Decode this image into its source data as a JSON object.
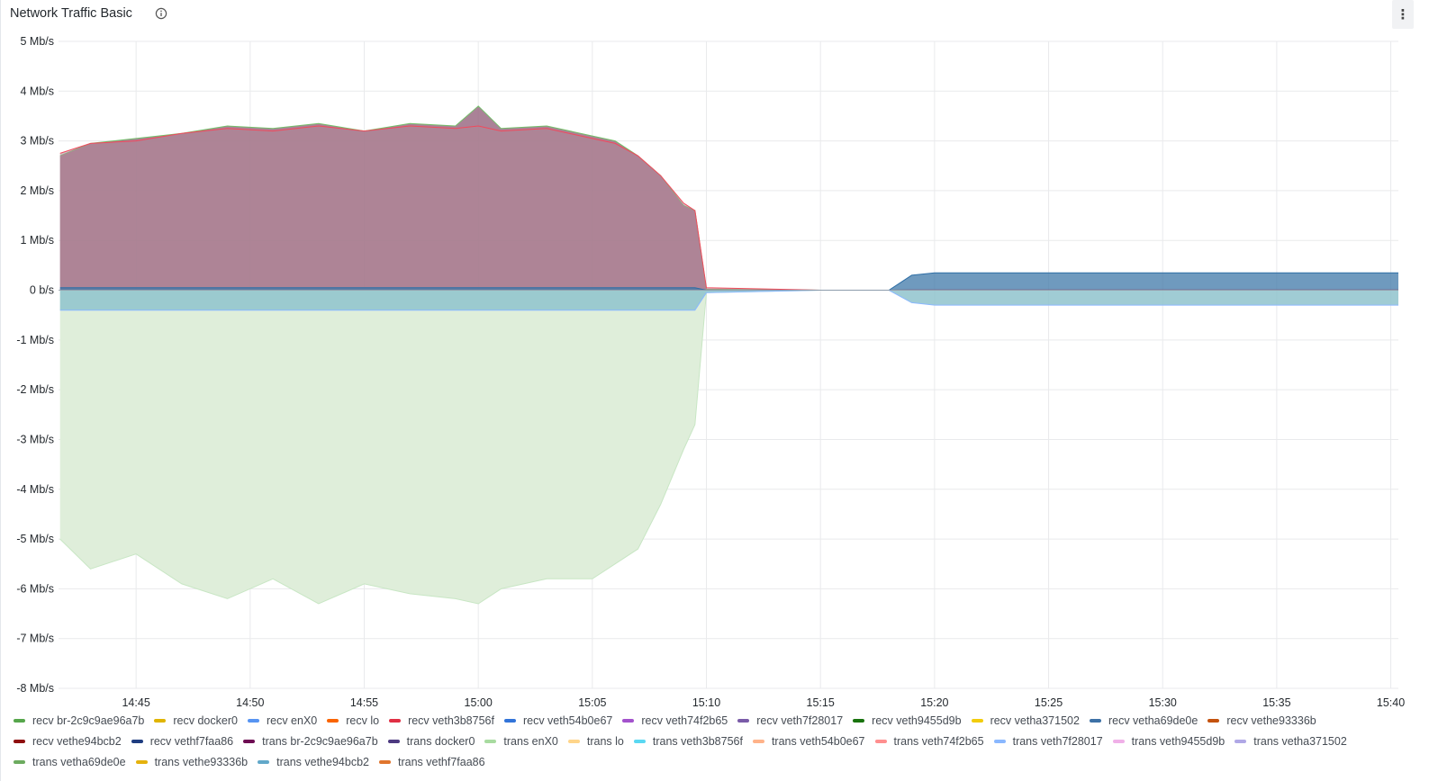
{
  "panel": {
    "title": "Network Traffic Basic",
    "menu_label": "⋮"
  },
  "chart_data": {
    "type": "area",
    "title": "Network Traffic Basic",
    "y_ticks": [
      "5 Mb/s",
      "4 Mb/s",
      "3 Mb/s",
      "2 Mb/s",
      "1 Mb/s",
      "0 b/s",
      "-1 Mb/s",
      "-2 Mb/s",
      "-3 Mb/s",
      "-4 Mb/s",
      "-5 Mb/s",
      "-6 Mb/s",
      "-7 Mb/s",
      "-8 Mb/s"
    ],
    "x_ticks": [
      "14:45",
      "14:50",
      "14:55",
      "15:00",
      "15:05",
      "15:10",
      "15:15",
      "15:20",
      "15:25",
      "15:30",
      "15:35",
      "15:40"
    ],
    "ylim": [
      -8,
      5
    ],
    "y_unit": "Mb/s",
    "x_range": [
      "14:41:36",
      "15:40:20"
    ],
    "grid": true,
    "legend_position": "bottom",
    "series_samples_time": [
      "14:41:40",
      "14:43",
      "14:45",
      "14:47",
      "14:49",
      "14:51",
      "14:53",
      "14:55",
      "14:57",
      "14:59",
      "15:00",
      "15:01",
      "15:03",
      "15:05",
      "15:06",
      "15:07",
      "15:08",
      "15:09",
      "15:09:30",
      "15:10",
      "15:15",
      "15:18",
      "15:19",
      "15:20",
      "15:25",
      "15:30",
      "15:35",
      "15:40:20"
    ],
    "series": [
      {
        "name": "recv br-2c9c9ae96a7b",
        "color": "#73bf69",
        "values": [
          2.7,
          2.95,
          3.05,
          3.15,
          3.3,
          3.25,
          3.35,
          3.2,
          3.35,
          3.3,
          3.7,
          3.25,
          3.3,
          3.1,
          3.0,
          2.7,
          2.3,
          1.7,
          1.6,
          0.02,
          0,
          0,
          0.01,
          0.01,
          0.01,
          0.01,
          0.01,
          0.01
        ]
      },
      {
        "name": "recv veth3b8756f",
        "color": "#f2495c",
        "values": [
          2.75,
          2.95,
          3.0,
          3.15,
          3.25,
          3.2,
          3.3,
          3.2,
          3.3,
          3.25,
          3.3,
          3.2,
          3.25,
          3.05,
          2.95,
          2.7,
          2.3,
          1.75,
          1.6,
          0.05,
          0,
          0,
          0.01,
          0.01,
          0.01,
          0.01,
          0.01,
          0.01
        ]
      },
      {
        "name": "recv vethe94bcb2",
        "color": "#2f6fa6",
        "values": [
          0.05,
          0.05,
          0.05,
          0.05,
          0.05,
          0.05,
          0.05,
          0.05,
          0.05,
          0.05,
          0.05,
          0.05,
          0.05,
          0.05,
          0.05,
          0.05,
          0.05,
          0.05,
          0.05,
          0,
          0,
          0,
          0.3,
          0.35,
          0.35,
          0.35,
          0.35,
          0.35
        ]
      },
      {
        "name": "trans enX0",
        "color": "#c8e6c4",
        "values": [
          -5.0,
          -5.6,
          -5.3,
          -5.9,
          -6.2,
          -5.8,
          -6.3,
          -5.9,
          -6.1,
          -6.2,
          -6.3,
          -6.0,
          -5.8,
          -5.8,
          -5.5,
          -5.2,
          -4.3,
          -3.2,
          -2.7,
          -0.05,
          0,
          0,
          0,
          0,
          0,
          0,
          0,
          0
        ]
      },
      {
        "name": "trans veth3b8756f",
        "color": "#8ab8ff",
        "values": [
          -0.4,
          -0.4,
          -0.4,
          -0.4,
          -0.4,
          -0.4,
          -0.4,
          -0.4,
          -0.4,
          -0.4,
          -0.4,
          -0.4,
          -0.4,
          -0.4,
          -0.4,
          -0.4,
          -0.4,
          -0.4,
          -0.4,
          -0.05,
          0,
          0,
          -0.25,
          -0.3,
          -0.3,
          -0.3,
          -0.3,
          -0.3
        ]
      }
    ]
  },
  "legend": [
    {
      "label": "recv br-2c9c9ae96a7b",
      "color": "#56a64b"
    },
    {
      "label": "recv docker0",
      "color": "#e0b400"
    },
    {
      "label": "recv enX0",
      "color": "#5794f2"
    },
    {
      "label": "recv lo",
      "color": "#fa6400"
    },
    {
      "label": "recv veth3b8756f",
      "color": "#e02f44"
    },
    {
      "label": "recv veth54b0e67",
      "color": "#3274d9"
    },
    {
      "label": "recv veth74f2b65",
      "color": "#a352cc"
    },
    {
      "label": "recv veth7f28017",
      "color": "#7a5ba8"
    },
    {
      "label": "recv veth9455d9b",
      "color": "#19730e"
    },
    {
      "label": "recv vetha371502",
      "color": "#f2cc0c"
    },
    {
      "label": "recv vetha69de0e",
      "color": "#3d71a6"
    },
    {
      "label": "recv vethe93336b",
      "color": "#c4520e"
    },
    {
      "label": "recv vethe94bcb2",
      "color": "#8f1010"
    },
    {
      "label": "recv vethf7faa86",
      "color": "#1f3d80"
    },
    {
      "label": "trans br-2c9c9ae96a7b",
      "color": "#6e0d53"
    },
    {
      "label": "trans docker0",
      "color": "#4d3a80"
    },
    {
      "label": "trans enX0",
      "color": "#a8dba0"
    },
    {
      "label": "trans lo",
      "color": "#ffd58a"
    },
    {
      "label": "trans veth3b8756f",
      "color": "#5ad8f2"
    },
    {
      "label": "trans veth54b0e67",
      "color": "#ffb38a"
    },
    {
      "label": "trans veth74f2b65",
      "color": "#ff8f8f"
    },
    {
      "label": "trans veth7f28017",
      "color": "#8ab8ff"
    },
    {
      "label": "trans veth9455d9b",
      "color": "#f0b0e8"
    },
    {
      "label": "trans vetha371502",
      "color": "#b0a8e6"
    },
    {
      "label": "trans vetha69de0e",
      "color": "#6cab5f"
    },
    {
      "label": "trans vethe93336b",
      "color": "#e5b20d"
    },
    {
      "label": "trans vethe94bcb2",
      "color": "#62a8c9"
    },
    {
      "label": "trans vethf7faa86",
      "color": "#e0752d"
    }
  ]
}
